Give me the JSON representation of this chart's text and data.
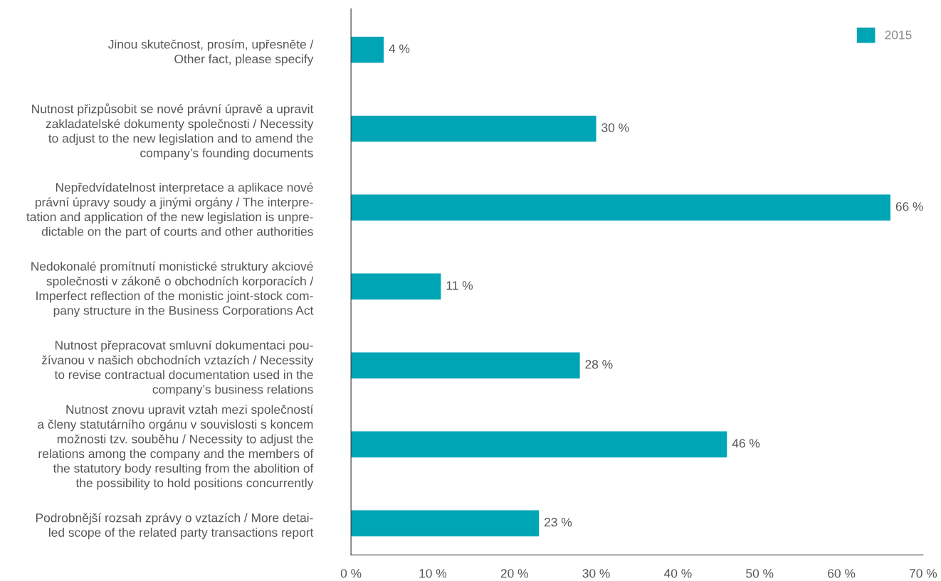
{
  "chart_data": {
    "type": "bar",
    "orientation": "horizontal",
    "categories": [
      "Jinou skutečnost, prosím, upřesněte /\nOther fact, please specify",
      "Nutnost přizpůsobit se nové právní úpravě a upravit\nzakladatelské dokumenty společnosti / Necessity\nto adjust to the new legislation and to amend the\ncompany’s founding documents",
      "Nepředvídatelnost interpretace a aplikace nové\nprávní úpravy soudy a jinými orgány / The interpre-\ntation and application of the new legislation is unpre-\ndictable on the part of courts and other authorities",
      "Nedokonalé promítnutí monistické struktury akciové\nspolečnosti v zákoně o obchodních korporacích /\nImperfect reflection of the monistic joint-stock com-\npany structure in the Business Corporations Act",
      "Nutnost přepracovat smluvní dokumentaci pou-\nžívanou v našich obchodních vztazích / Necessity\nto revise contractual documentation used in the\ncompany’s business relations",
      "Nutnost znovu upravit vztah mezi společností\na členy statutárního orgánu v souvislosti s koncem\nmožnosti tzv. souběhu / Necessity to adjust the\nrelations among the company and the members of\nthe statutory body resulting from the abolition of\nthe possibility to hold positions concurrently",
      "Podrobnější rozsah zprávy o vztazích / More detai-\nled scope of the related party transactions report"
    ],
    "series": [
      {
        "name": "2015",
        "color": "#00a5b5",
        "values": [
          4,
          30,
          66,
          11,
          28,
          46,
          23
        ],
        "value_labels": [
          "4 %",
          "30 %",
          "66 %",
          "11 %",
          "28 %",
          "46 %",
          "23 %"
        ]
      }
    ],
    "xlim": [
      0,
      70
    ],
    "xticks": [
      {
        "value": 0,
        "label": "0 %"
      },
      {
        "value": 10,
        "label": "10 %"
      },
      {
        "value": 20,
        "label": "20 %"
      },
      {
        "value": 30,
        "label": "30 %"
      },
      {
        "value": 40,
        "label": "40 %"
      },
      {
        "value": 50,
        "label": "50 %"
      },
      {
        "value": 60,
        "label": "60 %"
      },
      {
        "value": 70,
        "label": "70 %"
      }
    ],
    "grid": false,
    "legend": "top right"
  }
}
